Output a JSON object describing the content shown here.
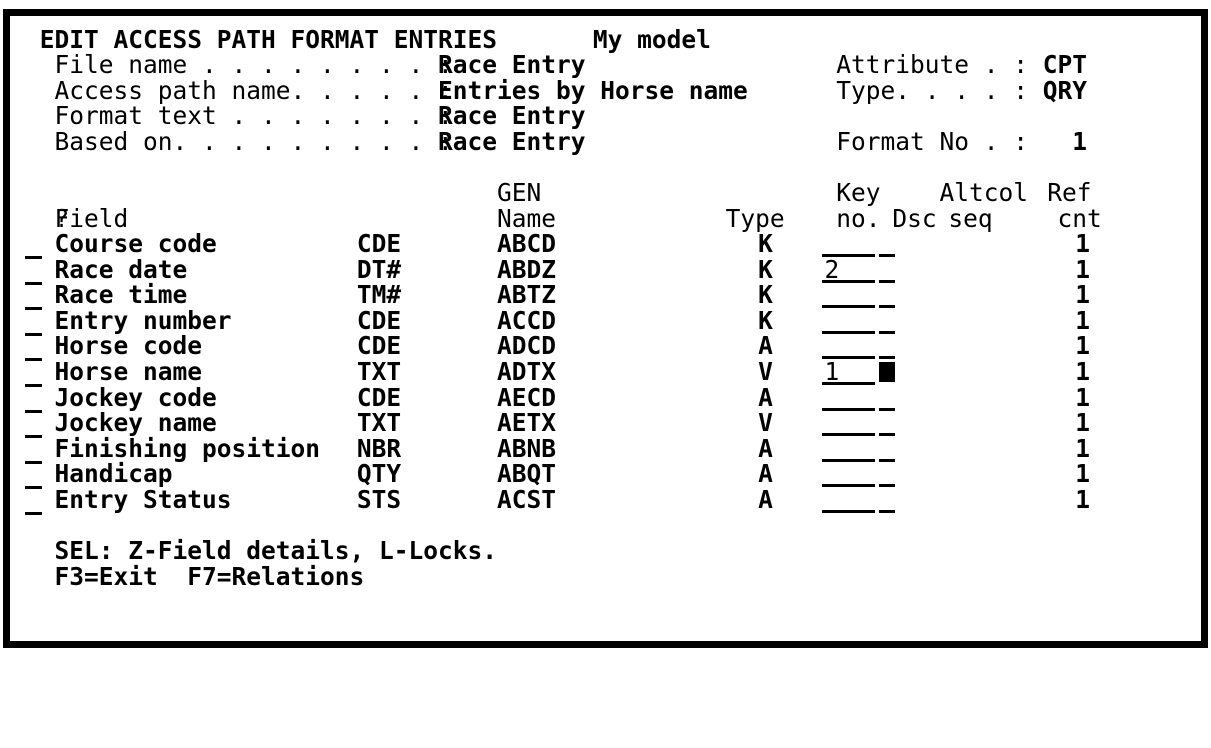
{
  "colors": {
    "background": "#ffffff",
    "foreground": "#000000"
  },
  "screen": {
    "title": "EDIT ACCESS PATH FORMAT ENTRIES",
    "model_name": "My model",
    "header_left": [
      {
        "label": "File name . . . . . . . . :",
        "value": "Race Entry"
      },
      {
        "label": "Access path name. . . . . :",
        "value": "Entries by Horse name"
      },
      {
        "label": "Format text . . . . . . . :",
        "value": "Race Entry"
      },
      {
        "label": "Based on. . . . . . . . . :",
        "value": "Race Entry"
      }
    ],
    "header_right": [
      {
        "label": "Attribute . :",
        "value": "CPT"
      },
      {
        "label": "Type. . . . :",
        "value": "QRY"
      },
      {
        "label": "Format No . :",
        "value": "1"
      }
    ]
  },
  "table": {
    "headers": {
      "gen": "GEN",
      "name": "Name",
      "sel": "?",
      "field": "Field",
      "type": "Type",
      "key": "Key",
      "key_no": "no.",
      "dsc": "Dsc",
      "altcol": "Altcol",
      "seq": "seq",
      "ref": "Ref",
      "cnt": "cnt"
    },
    "rows": [
      {
        "field": "Course code",
        "type_code": "CDE",
        "gen_name": "ABCD",
        "key_type": "K",
        "key_no": "",
        "dsc_cursor": false,
        "ref_cnt": "1"
      },
      {
        "field": "Race date",
        "type_code": "DT#",
        "gen_name": "ABDZ",
        "key_type": "K",
        "key_no": "2",
        "dsc_cursor": false,
        "ref_cnt": "1"
      },
      {
        "field": "Race time",
        "type_code": "TM#",
        "gen_name": "ABTZ",
        "key_type": "K",
        "key_no": "",
        "dsc_cursor": false,
        "ref_cnt": "1"
      },
      {
        "field": "Entry number",
        "type_code": "CDE",
        "gen_name": "ACCD",
        "key_type": "K",
        "key_no": "",
        "dsc_cursor": false,
        "ref_cnt": "1"
      },
      {
        "field": "Horse code",
        "type_code": "CDE",
        "gen_name": "ADCD",
        "key_type": "A",
        "key_no": "",
        "dsc_cursor": false,
        "ref_cnt": "1"
      },
      {
        "field": "Horse name",
        "type_code": "TXT",
        "gen_name": "ADTX",
        "key_type": "V",
        "key_no": "1",
        "dsc_cursor": true,
        "ref_cnt": "1"
      },
      {
        "field": "Jockey code",
        "type_code": "CDE",
        "gen_name": "AECD",
        "key_type": "A",
        "key_no": "",
        "dsc_cursor": false,
        "ref_cnt": "1"
      },
      {
        "field": "Jockey name",
        "type_code": "TXT",
        "gen_name": "AETX",
        "key_type": "V",
        "key_no": "",
        "dsc_cursor": false,
        "ref_cnt": "1"
      },
      {
        "field": "Finishing position",
        "type_code": "NBR",
        "gen_name": "ABNB",
        "key_type": "A",
        "key_no": "",
        "dsc_cursor": false,
        "ref_cnt": "1"
      },
      {
        "field": "Handicap",
        "type_code": "QTY",
        "gen_name": "ABQT",
        "key_type": "A",
        "key_no": "",
        "dsc_cursor": false,
        "ref_cnt": "1"
      },
      {
        "field": "Entry Status",
        "type_code": "STS",
        "gen_name": "ACST",
        "key_type": "A",
        "key_no": "",
        "dsc_cursor": false,
        "ref_cnt": "1"
      }
    ]
  },
  "footer": {
    "sel_line": "SEL: Z-Field details, L-Locks.",
    "fkeys_line": "F3=Exit  F7=Relations"
  }
}
